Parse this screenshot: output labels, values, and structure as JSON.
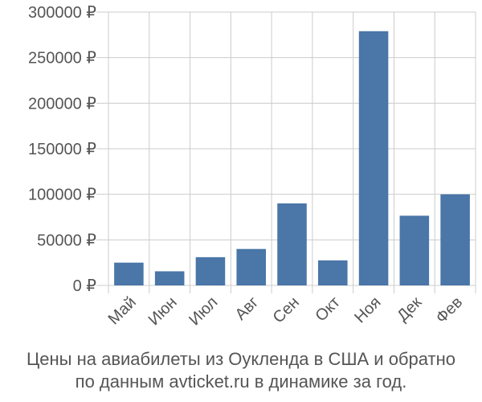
{
  "chart_data": {
    "type": "bar",
    "categories": [
      "Май",
      "Июн",
      "Июл",
      "Авг",
      "Сен",
      "Окт",
      "Ноя",
      "Дек",
      "Фев"
    ],
    "values": [
      25000,
      15500,
      31000,
      40000,
      90000,
      27500,
      279000,
      76500,
      100000
    ],
    "y_ticks": [
      "0 ₽",
      "50000 ₽",
      "100000 ₽",
      "150000 ₽",
      "200000 ₽",
      "250000 ₽",
      "300000 ₽"
    ],
    "ylim": [
      0,
      300000
    ],
    "grid": true,
    "bar_color": "#4a76a8",
    "title": "",
    "xlabel": "",
    "ylabel": ""
  },
  "caption": {
    "line1": "Цены на авиабилеты из Оукленда в США и обратно",
    "line2": "по данным avticket.ru в динамике за год."
  },
  "colors": {
    "grid": "#cccccc",
    "axis_text": "#555555"
  }
}
